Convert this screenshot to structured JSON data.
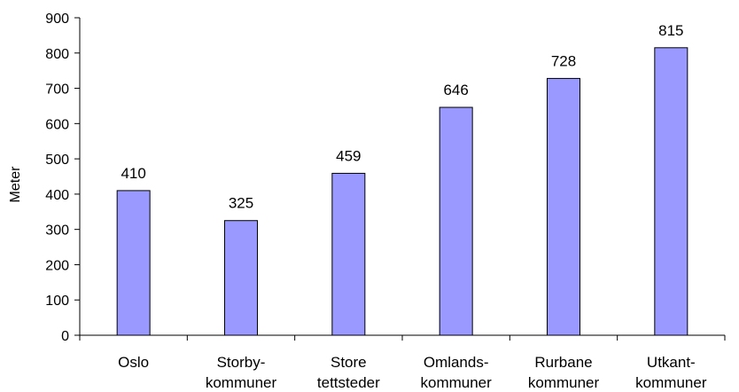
{
  "chart_data": {
    "type": "bar",
    "categories": [
      [
        "Oslo"
      ],
      [
        "Storby-",
        "kommuner"
      ],
      [
        "Store",
        "tettsteder"
      ],
      [
        "Omlands-",
        "kommuner"
      ],
      [
        "Rurbane",
        "kommuner"
      ],
      [
        "Utkant-",
        "kommuner"
      ]
    ],
    "values": [
      410,
      325,
      459,
      646,
      728,
      815
    ],
    "data_labels": [
      "410",
      "325",
      "459",
      "646",
      "728",
      "815"
    ],
    "title": "",
    "xlabel": "",
    "ylabel": "Meter",
    "ylim": [
      0,
      900
    ],
    "yticks": [
      0,
      100,
      200,
      300,
      400,
      500,
      600,
      700,
      800,
      900
    ],
    "grid": false,
    "legend": "none",
    "bar_color": "#9999ff",
    "bar_edge_color": "#000000"
  }
}
